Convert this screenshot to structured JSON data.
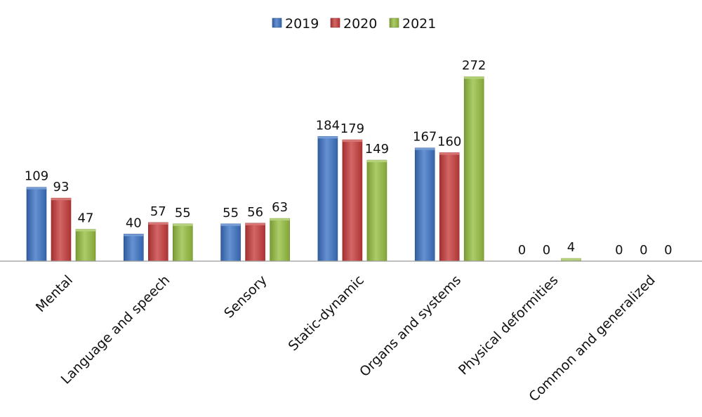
{
  "chart_data": {
    "type": "bar",
    "title": "",
    "xlabel": "",
    "ylabel": "",
    "ylim": [
      0,
      290
    ],
    "grid": false,
    "legend_position": "top-center",
    "categories": [
      "Mental",
      "Language and speech",
      "Sensory",
      "Static-dynamic",
      "Organs and systems",
      "Physical deformities",
      "Common and generalized"
    ],
    "series": [
      {
        "name": "2019",
        "color": "#3B72C4",
        "values": [
          109,
          40,
          55,
          184,
          167,
          0,
          0
        ]
      },
      {
        "name": "2020",
        "color": "#C73B3B",
        "values": [
          93,
          57,
          56,
          179,
          160,
          0,
          0
        ]
      },
      {
        "name": "2021",
        "color": "#95BD3F",
        "values": [
          47,
          55,
          63,
          149,
          272,
          4,
          0
        ]
      }
    ]
  }
}
